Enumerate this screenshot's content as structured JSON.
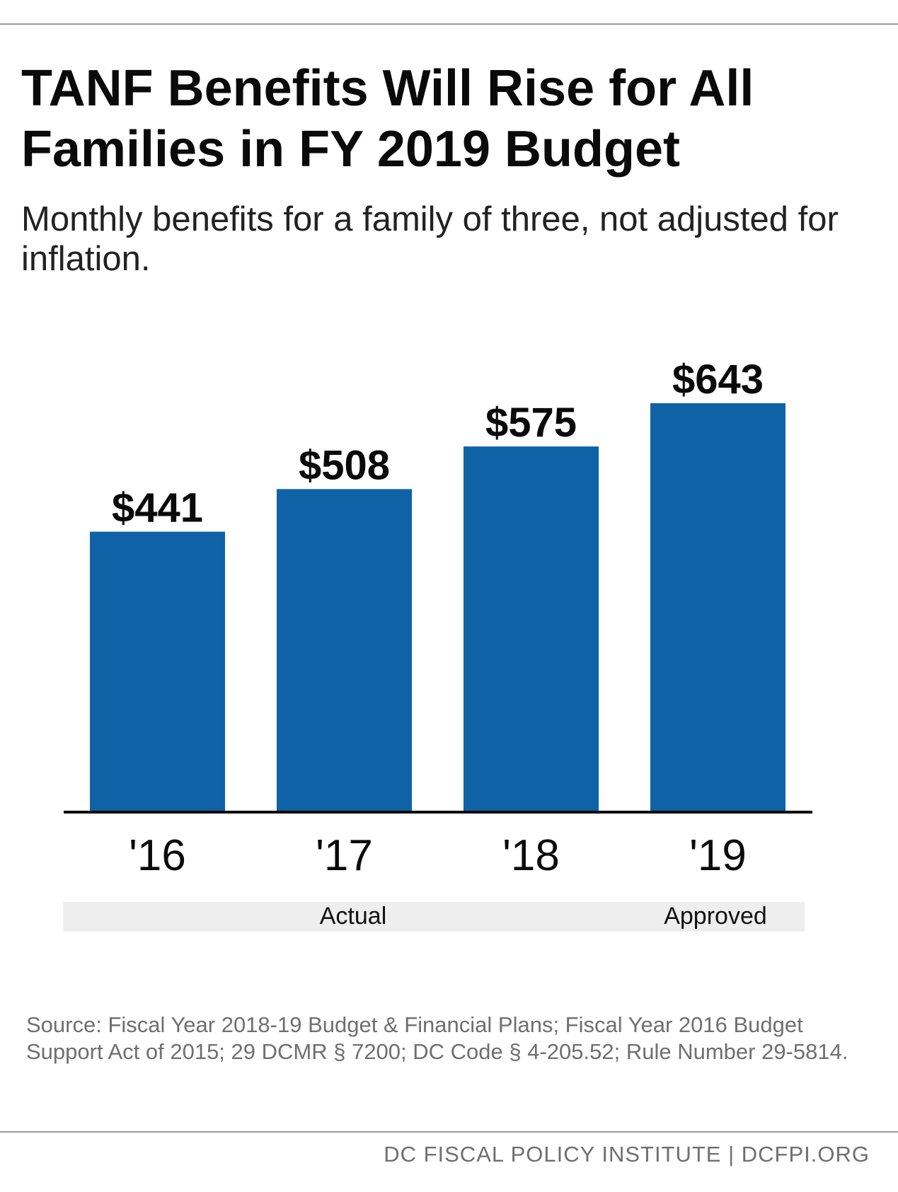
{
  "title": "TANF Benefits Will Rise for All Families in FY 2019 Budget",
  "subtitle": "Monthly benefits for a family of three, not adjusted for inflation.",
  "source": "Source: Fiscal Year 2018-19 Budget & Financial Plans; Fiscal Year 2016 Budget Support Act of 2015; 29 DCMR § 7200; DC Code § 4-205.52; Rule Number 29-5814.",
  "footer": "DC FISCAL POLICY INSTITUTE | DCFPI.ORG",
  "colors": {
    "bar": "#0f62a6",
    "axis": "#0a0a0a",
    "group_band": "#eeeeee",
    "rule": "#9a9a9a"
  },
  "chart_data": {
    "type": "bar",
    "categories": [
      "'16",
      "'17",
      "'18",
      "'19"
    ],
    "values": [
      441,
      508,
      575,
      643
    ],
    "value_labels": [
      "$441",
      "$508",
      "$575",
      "$643"
    ],
    "ylim": [
      0,
      700
    ],
    "grid": false,
    "legend": "none",
    "groups": [
      {
        "label": "Actual",
        "categories": [
          "'16",
          "'17",
          "'18"
        ]
      },
      {
        "label": "Approved",
        "categories": [
          "'19"
        ]
      }
    ]
  }
}
